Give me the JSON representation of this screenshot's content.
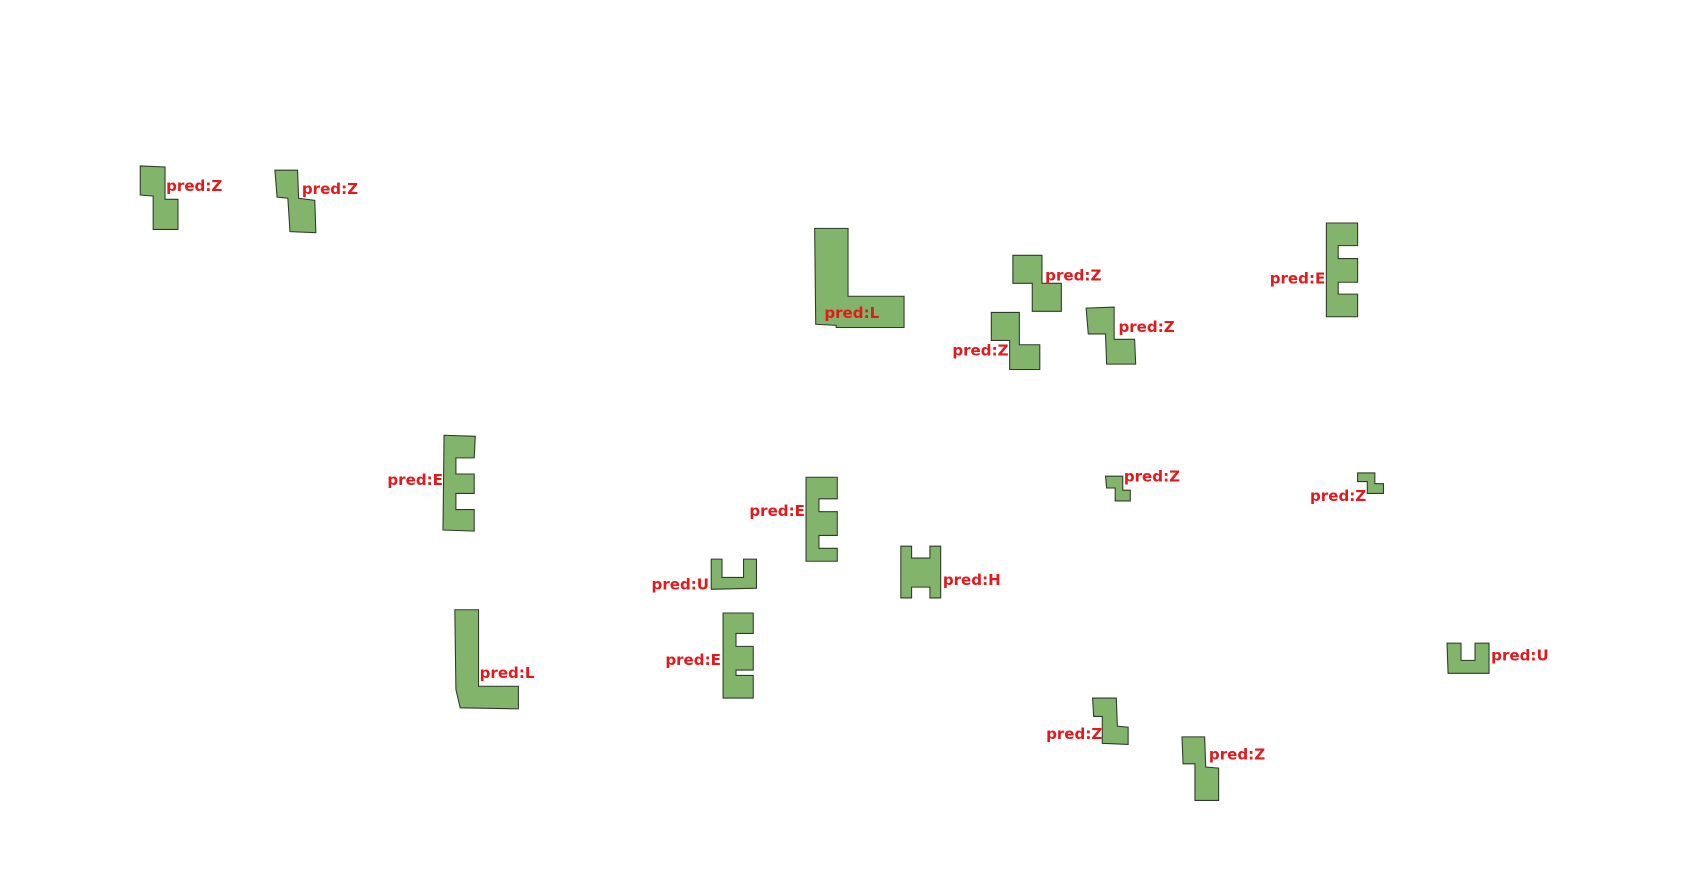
{
  "features": [
    {
      "label": "pred:Z"
    },
    {
      "label": "pred:Z"
    },
    {
      "label": "pred:L"
    },
    {
      "label": "pred:Z"
    },
    {
      "label": "pred:Z"
    },
    {
      "label": "pred:Z"
    },
    {
      "label": "pred:E"
    },
    {
      "label": "pred:E"
    },
    {
      "label": "pred:E"
    },
    {
      "label": "pred:H"
    },
    {
      "label": "pred:U"
    },
    {
      "label": "pred:E"
    },
    {
      "label": "pred:L"
    },
    {
      "label": "pred:Z"
    },
    {
      "label": "pred:Z"
    },
    {
      "label": "pred:U"
    },
    {
      "label": "pred:Z"
    },
    {
      "label": "pred:Z"
    }
  ]
}
